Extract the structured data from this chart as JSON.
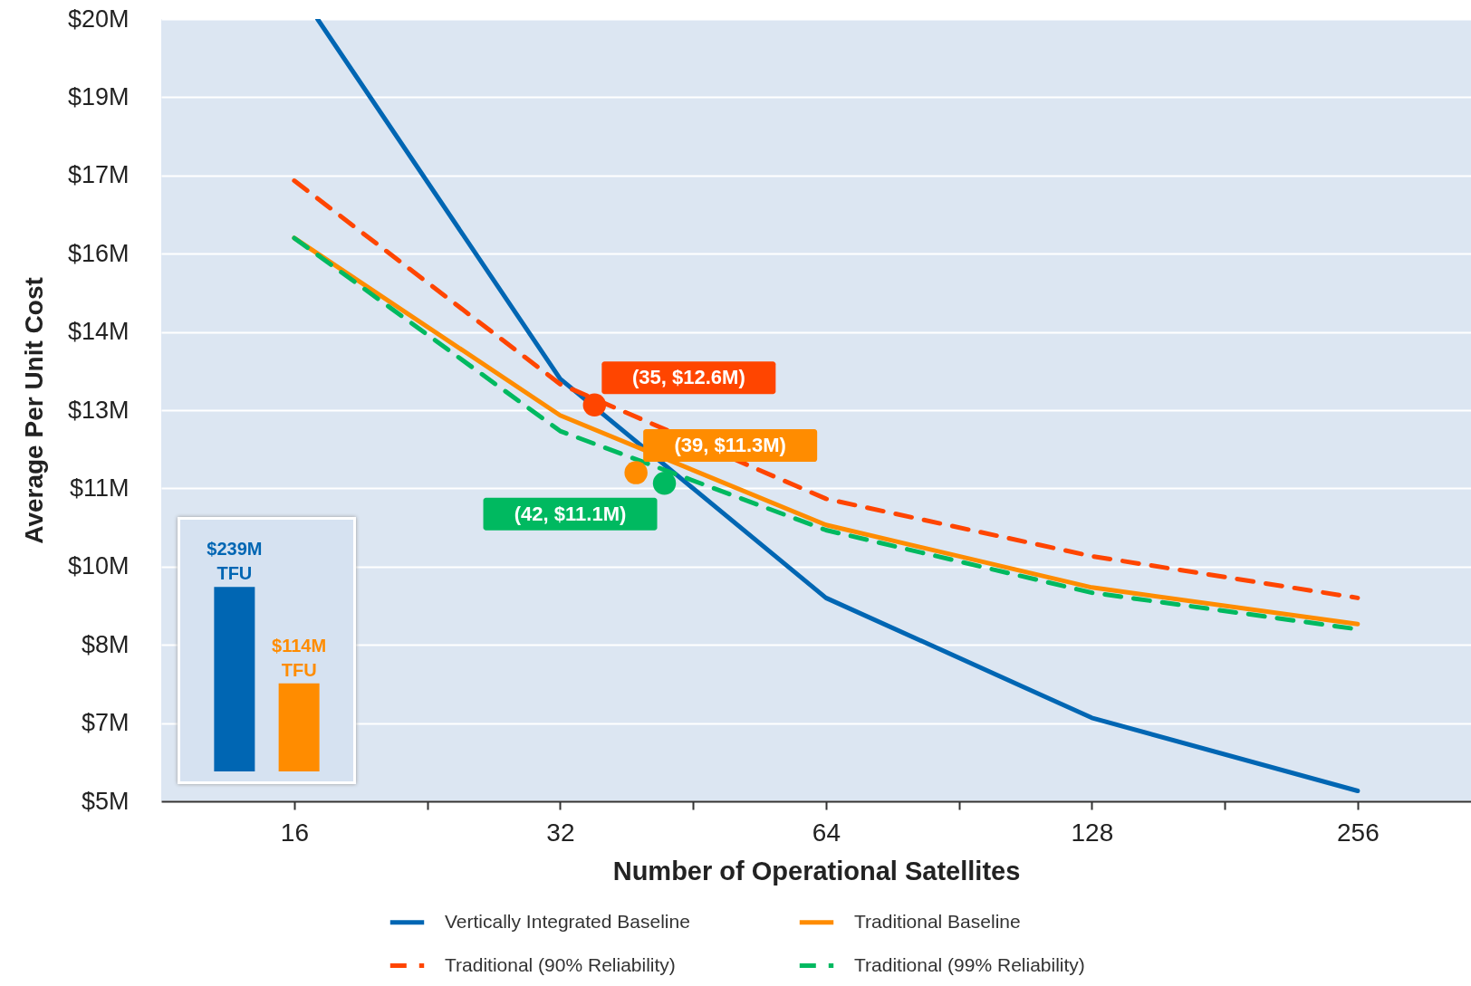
{
  "chart_data": [
    {
      "type": "line",
      "xlabel": "Number of Operational Satellites",
      "ylabel": "Average Per Unit Cost",
      "log": "x",
      "xlim": [
        11.31,
        344
      ],
      "xticks": [
        16,
        {
          "value": 22.63,
          "label": null
        },
        32,
        {
          "value": 45.25,
          "label": null
        },
        64,
        {
          "value": 90.51,
          "label": null
        },
        128,
        {
          "value": 181.02,
          "label": null
        },
        256
      ],
      "ylim": [
        5,
        20
      ],
      "yticks": [
        {
          "value": 5,
          "label": "$5M"
        },
        {
          "value": 6.5,
          "label": "$7M"
        },
        {
          "value": 8,
          "label": "$8M"
        },
        {
          "value": 9.5,
          "label": "$10M"
        },
        {
          "value": 11,
          "label": "$11M"
        },
        {
          "value": 12.5,
          "label": "$13M"
        },
        {
          "value": 14,
          "label": "$14M"
        },
        {
          "value": 15.5,
          "label": "$16M"
        },
        {
          "value": 17,
          "label": "$17M"
        },
        {
          "value": 18.5,
          "label": "$19M"
        },
        {
          "value": 20,
          "label": "$20M"
        }
      ],
      "grid": "y",
      "legend": "bottom",
      "series": [
        {
          "name": "Vertically Integrated Baseline",
          "color": "#0066b3",
          "line_style": "solid",
          "x": [
            17,
            32,
            64,
            128,
            256
          ],
          "values": [
            20,
            13.1,
            8.9,
            6.6,
            5.2
          ]
        },
        {
          "name": "Traditional Baseline",
          "color": "#ff8c00",
          "line_style": "solid",
          "x": [
            16,
            32,
            64,
            128,
            256
          ],
          "values": [
            15.8,
            12.4,
            10.3,
            9.1,
            8.4
          ]
        },
        {
          "name": "Traditional (90% Reliability)",
          "color": "#ff4500",
          "line_style": "dashed",
          "x": [
            16,
            32,
            64,
            128,
            256
          ],
          "values": [
            16.9,
            13.0,
            10.8,
            9.7,
            8.9
          ]
        },
        {
          "name": "Traditional (99% Reliability)",
          "color": "#00b960",
          "line_style": "dashed",
          "x": [
            16,
            32,
            64,
            128,
            256
          ],
          "values": [
            15.8,
            12.1,
            10.2,
            9.0,
            8.3
          ]
        },
        {
          "type": "scatter",
          "marker": "circle",
          "color": "#ff4500",
          "x": [
            35
          ],
          "values": [
            12.6
          ],
          "value_labels": [
            "(35, $12.6M)"
          ]
        },
        {
          "type": "scatter",
          "marker": "circle",
          "color": "#ff8c00",
          "x": [
            39
          ],
          "values": [
            11.3
          ],
          "value_labels": [
            "(39, $11.3M)"
          ]
        },
        {
          "type": "scatter",
          "marker": "circle",
          "color": "#00b960",
          "x": [
            42
          ],
          "values": [
            11.1
          ],
          "value_labels": [
            "(42, $11.1M)"
          ]
        }
      ]
    },
    {
      "type": "bar",
      "categories": [
        null,
        null
      ],
      "values": [
        239,
        114
      ],
      "colors": [
        "#0066b3",
        "#ff8c00"
      ],
      "value_labels": [
        "$239M TFU",
        "$114M TFU"
      ]
    }
  ]
}
